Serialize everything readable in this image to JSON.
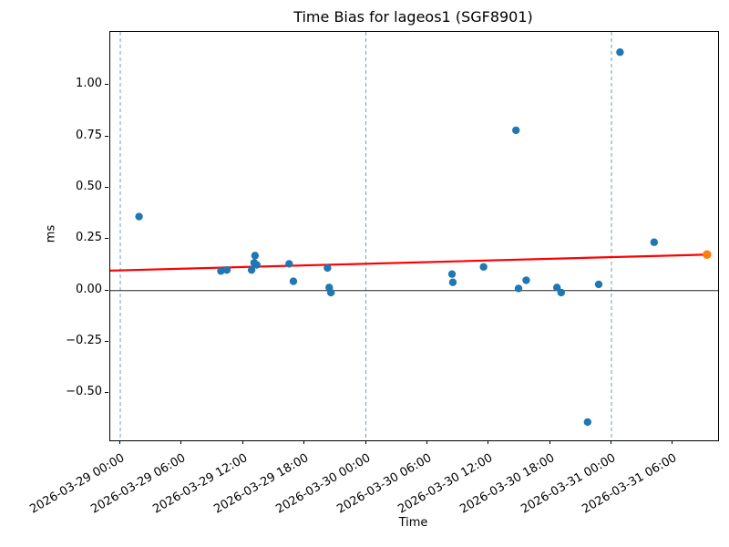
{
  "chart_data": {
    "type": "scatter",
    "title": "Time Bias for lageos1 (SGF8901)",
    "xlabel": "Time",
    "ylabel": "ms",
    "ylim": [
      -0.73,
      1.26
    ],
    "xlim_hours_from_epoch": [
      -0.98,
      58.4
    ],
    "epoch": "2026-03-29 00:00",
    "grid": "off",
    "y_tick_values": [
      1.0,
      0.75,
      0.5,
      0.25,
      0.0,
      -0.25,
      -0.5
    ],
    "y_tick_labels": [
      "1.00",
      "0.75",
      "0.50",
      "0.25",
      "0.00",
      "−0.25",
      "−0.50"
    ],
    "x_tick_hours": [
      0,
      6,
      12,
      18,
      24,
      30,
      36,
      42,
      48,
      54
    ],
    "x_tick_labels": [
      "2026-03-29 00:00",
      "2026-03-29 06:00",
      "2026-03-29 12:00",
      "2026-03-29 18:00",
      "2026-03-30 00:00",
      "2026-03-30 06:00",
      "2026-03-30 12:00",
      "2026-03-30 18:00",
      "2026-03-31 00:00",
      "2026-03-31 06:00"
    ],
    "day_boundary_lines": [
      "2026-03-29 00:00",
      "2026-03-30 00:00",
      "2026-03-31 00:00"
    ],
    "zero_line_ms": 0.0,
    "points": [
      {
        "time": "2026-03-29 01:50",
        "ms": 0.36
      },
      {
        "time": "2026-03-29 09:50",
        "ms": 0.095
      },
      {
        "time": "2026-03-29 10:25",
        "ms": 0.1
      },
      {
        "time": "2026-03-29 12:50",
        "ms": 0.1
      },
      {
        "time": "2026-03-29 13:05",
        "ms": 0.135
      },
      {
        "time": "2026-03-29 13:10",
        "ms": 0.17
      },
      {
        "time": "2026-03-29 13:20",
        "ms": 0.125
      },
      {
        "time": "2026-03-29 16:30",
        "ms": 0.13
      },
      {
        "time": "2026-03-29 16:55",
        "ms": 0.045
      },
      {
        "time": "2026-03-29 20:15",
        "ms": 0.11
      },
      {
        "time": "2026-03-29 20:25",
        "ms": 0.015
      },
      {
        "time": "2026-03-29 20:35",
        "ms": -0.01
      },
      {
        "time": "2026-03-30 08:25",
        "ms": 0.08
      },
      {
        "time": "2026-03-30 08:30",
        "ms": 0.04
      },
      {
        "time": "2026-03-30 11:30",
        "ms": 0.115
      },
      {
        "time": "2026-03-30 14:40",
        "ms": 0.78
      },
      {
        "time": "2026-03-30 14:55",
        "ms": 0.01
      },
      {
        "time": "2026-03-30 15:40",
        "ms": 0.05
      },
      {
        "time": "2026-03-30 18:40",
        "ms": 0.015
      },
      {
        "time": "2026-03-30 19:05",
        "ms": -0.01
      },
      {
        "time": "2026-03-30 21:40",
        "ms": -0.64
      },
      {
        "time": "2026-03-30 22:45",
        "ms": 0.03
      },
      {
        "time": "2026-03-31 00:50",
        "ms": 1.16
      },
      {
        "time": "2026-03-31 04:10",
        "ms": 0.235
      }
    ],
    "trend_line": {
      "start": {
        "time": "2026-03-28 23:00",
        "ms": 0.097
      },
      "end": {
        "time": "2026-03-31 09:20",
        "ms": 0.175
      }
    },
    "trend_endpoint": {
      "time": "2026-03-31 09:20",
      "ms": 0.175
    },
    "colors": {
      "marker": "#1f77b4",
      "trend_line": "#ff0000",
      "trend_endpoint": "#ff7f0e",
      "day_boundary": "#6b9ec7",
      "zero_line": "#222222"
    }
  }
}
